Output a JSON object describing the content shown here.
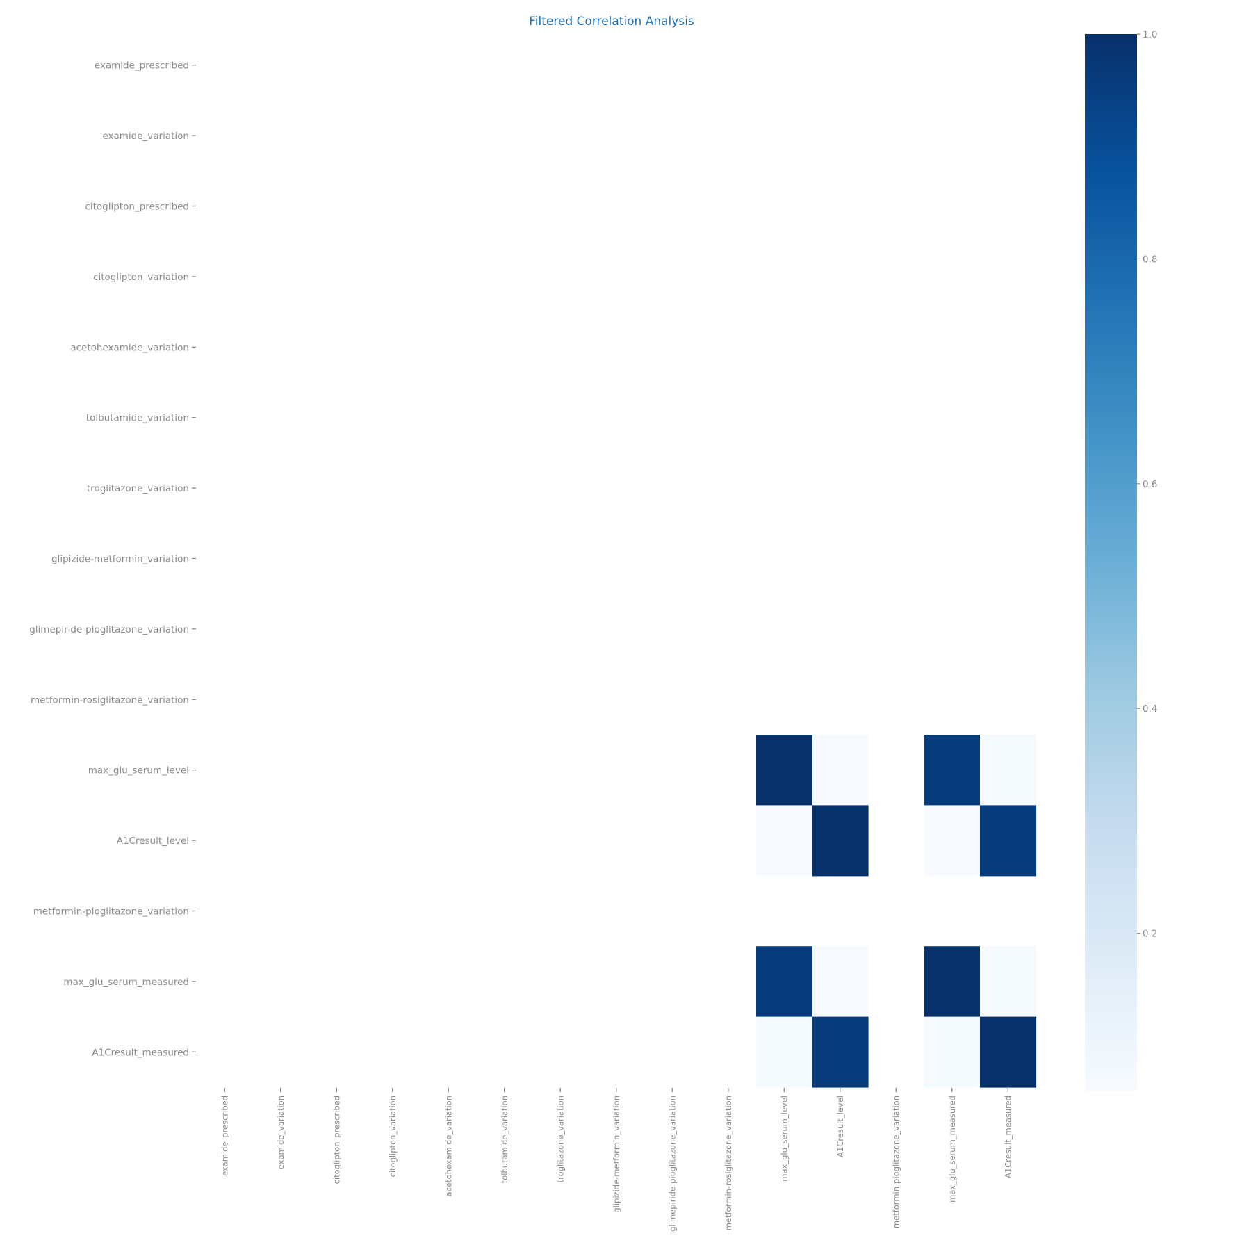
{
  "chart_data": {
    "type": "heatmap",
    "title": "Filtered Correlation Analysis",
    "title_color": "#1f6fb2",
    "label_color": "#8c8c8c",
    "colormap": "Blues",
    "colormap_stops": [
      "#f7fbff",
      "#deebf7",
      "#c6dbef",
      "#9ecae1",
      "#6baed6",
      "#4292c6",
      "#2171b5",
      "#08519c",
      "#08306b"
    ],
    "row_labels": [
      "examide_prescribed",
      "examide_variation",
      "citoglipton_prescribed",
      "citoglipton_variation",
      "acetohexamide_variation",
      "tolbutamide_variation",
      "troglitazone_variation",
      "glipizide-metformin_variation",
      "glimepiride-pioglitazone_variation",
      "metformin-rosiglitazone_variation",
      "max_glu_serum_level",
      "A1Cresult_level",
      "metformin-pioglitazone_variation",
      "max_glu_serum_measured",
      "A1Cresult_measured"
    ],
    "col_labels": [
      "examide_prescribed",
      "examide_variation",
      "citoglipton_prescribed",
      "citoglipton_variation",
      "acetohexamide_variation",
      "tolbutamide_variation",
      "troglitazone_variation",
      "glipizide-metformin_variation",
      "glimepiride-pioglitazone_variation",
      "metformin-rosiglitazone_variation",
      "max_glu_serum_level",
      "A1Cresult_level",
      "metformin-pioglitazone_variation",
      "max_glu_serum_measured",
      "A1Cresult_measured"
    ],
    "values": [
      [
        null,
        null,
        null,
        null,
        null,
        null,
        null,
        null,
        null,
        null,
        null,
        null,
        null,
        null,
        null
      ],
      [
        null,
        null,
        null,
        null,
        null,
        null,
        null,
        null,
        null,
        null,
        null,
        null,
        null,
        null,
        null
      ],
      [
        null,
        null,
        null,
        null,
        null,
        null,
        null,
        null,
        null,
        null,
        null,
        null,
        null,
        null,
        null
      ],
      [
        null,
        null,
        null,
        null,
        null,
        null,
        null,
        null,
        null,
        null,
        null,
        null,
        null,
        null,
        null
      ],
      [
        null,
        null,
        null,
        null,
        null,
        null,
        null,
        null,
        null,
        null,
        null,
        null,
        null,
        null,
        null
      ],
      [
        null,
        null,
        null,
        null,
        null,
        null,
        null,
        null,
        null,
        null,
        null,
        null,
        null,
        null,
        null
      ],
      [
        null,
        null,
        null,
        null,
        null,
        null,
        null,
        null,
        null,
        null,
        null,
        null,
        null,
        null,
        null
      ],
      [
        null,
        null,
        null,
        null,
        null,
        null,
        null,
        null,
        null,
        null,
        null,
        null,
        null,
        null,
        null
      ],
      [
        null,
        null,
        null,
        null,
        null,
        null,
        null,
        null,
        null,
        null,
        null,
        null,
        null,
        null,
        null
      ],
      [
        null,
        null,
        null,
        null,
        null,
        null,
        null,
        null,
        null,
        null,
        null,
        null,
        null,
        null,
        null
      ],
      [
        null,
        null,
        null,
        null,
        null,
        null,
        null,
        null,
        null,
        null,
        1.0,
        0.06,
        null,
        0.96,
        0.07
      ],
      [
        null,
        null,
        null,
        null,
        null,
        null,
        null,
        null,
        null,
        null,
        0.06,
        1.0,
        null,
        0.06,
        0.96
      ],
      [
        null,
        null,
        null,
        null,
        null,
        null,
        null,
        null,
        null,
        null,
        null,
        null,
        null,
        null,
        null
      ],
      [
        null,
        null,
        null,
        null,
        null,
        null,
        null,
        null,
        null,
        null,
        0.96,
        0.06,
        null,
        1.0,
        0.07
      ],
      [
        null,
        null,
        null,
        null,
        null,
        null,
        null,
        null,
        null,
        null,
        0.07,
        0.96,
        null,
        0.07,
        1.0
      ]
    ],
    "colorbar": {
      "min": 0.06,
      "max": 1.0,
      "ticks": [
        0.2,
        0.4,
        0.6,
        0.8,
        1.0
      ],
      "tick_labels": [
        "0.2",
        "0.4",
        "0.6",
        "0.8",
        "1.0"
      ]
    }
  }
}
